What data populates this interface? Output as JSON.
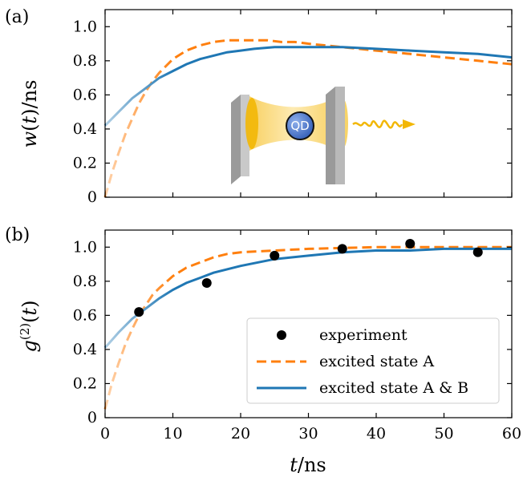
{
  "colors": {
    "excited_A": "#ff7f0e",
    "excited_AB": "#1f77b4",
    "experiment": "#000000",
    "cavity_field": "#f5b800",
    "mirror": "#b8b8b8",
    "qd": "#4a72c4"
  },
  "chart_data": [
    {
      "panel": "(a)",
      "type": "line",
      "ylabel": "w(t)/ns",
      "xlim": [
        0,
        60
      ],
      "ylim": [
        0,
        1.1
      ],
      "yticks": [
        "0",
        "0.2",
        "0.4",
        "0.6",
        "0.8",
        "1.0"
      ],
      "grid": false,
      "series": [
        {
          "name": "excited state A",
          "style": "dashed",
          "x": [
            0,
            1,
            2,
            3,
            4,
            5,
            6,
            7,
            8,
            10,
            12,
            14,
            16,
            18,
            20,
            22,
            24,
            26,
            28,
            30,
            35,
            40,
            45,
            50,
            55,
            60
          ],
          "y": [
            0.0,
            0.14,
            0.26,
            0.37,
            0.46,
            0.55,
            0.62,
            0.68,
            0.73,
            0.81,
            0.86,
            0.89,
            0.91,
            0.92,
            0.92,
            0.92,
            0.92,
            0.91,
            0.91,
            0.9,
            0.88,
            0.86,
            0.84,
            0.82,
            0.8,
            0.78
          ]
        },
        {
          "name": "excited state A & B",
          "style": "solid",
          "x": [
            0,
            2,
            4,
            6,
            8,
            10,
            12,
            14,
            16,
            18,
            20,
            22,
            25,
            30,
            35,
            40,
            45,
            50,
            55,
            60
          ],
          "y": [
            0.42,
            0.5,
            0.58,
            0.64,
            0.7,
            0.74,
            0.78,
            0.81,
            0.83,
            0.85,
            0.86,
            0.87,
            0.88,
            0.88,
            0.88,
            0.87,
            0.86,
            0.85,
            0.84,
            0.82
          ]
        }
      ]
    },
    {
      "panel": "(b)",
      "type": "line",
      "xlabel": "t/ns",
      "ylabel": "g(2)(t)",
      "xlim": [
        0,
        60
      ],
      "ylim": [
        0,
        1.1
      ],
      "xticks": [
        "0",
        "10",
        "20",
        "30",
        "40",
        "50",
        "60"
      ],
      "yticks": [
        "0",
        "0.2",
        "0.4",
        "0.6",
        "0.8",
        "1.0"
      ],
      "grid": false,
      "legend_position": "bottom-right",
      "series": [
        {
          "name": "experiment",
          "style": "scatter",
          "x": [
            5,
            15,
            25,
            35,
            45,
            55
          ],
          "y": [
            0.62,
            0.79,
            0.95,
            0.99,
            1.02,
            0.97
          ]
        },
        {
          "name": "excited state A",
          "style": "dashed",
          "x": [
            0,
            1,
            2,
            3,
            4,
            5,
            6,
            7,
            8,
            10,
            12,
            14,
            16,
            18,
            20,
            25,
            30,
            35,
            40,
            45,
            50,
            55,
            60
          ],
          "y": [
            0.05,
            0.2,
            0.32,
            0.43,
            0.52,
            0.6,
            0.66,
            0.72,
            0.76,
            0.83,
            0.88,
            0.91,
            0.94,
            0.96,
            0.97,
            0.98,
            0.99,
            0.995,
            1.0,
            1.0,
            1.0,
            1.0,
            1.0
          ]
        },
        {
          "name": "excited state A & B",
          "style": "solid",
          "x": [
            0,
            2,
            4,
            6,
            8,
            10,
            12,
            14,
            16,
            18,
            20,
            25,
            30,
            35,
            40,
            45,
            50,
            55,
            60
          ],
          "y": [
            0.41,
            0.5,
            0.58,
            0.64,
            0.7,
            0.75,
            0.79,
            0.82,
            0.85,
            0.87,
            0.89,
            0.93,
            0.95,
            0.97,
            0.98,
            0.98,
            0.99,
            0.99,
            0.99
          ]
        }
      ]
    }
  ],
  "inset": {
    "qd_label": "QD"
  }
}
